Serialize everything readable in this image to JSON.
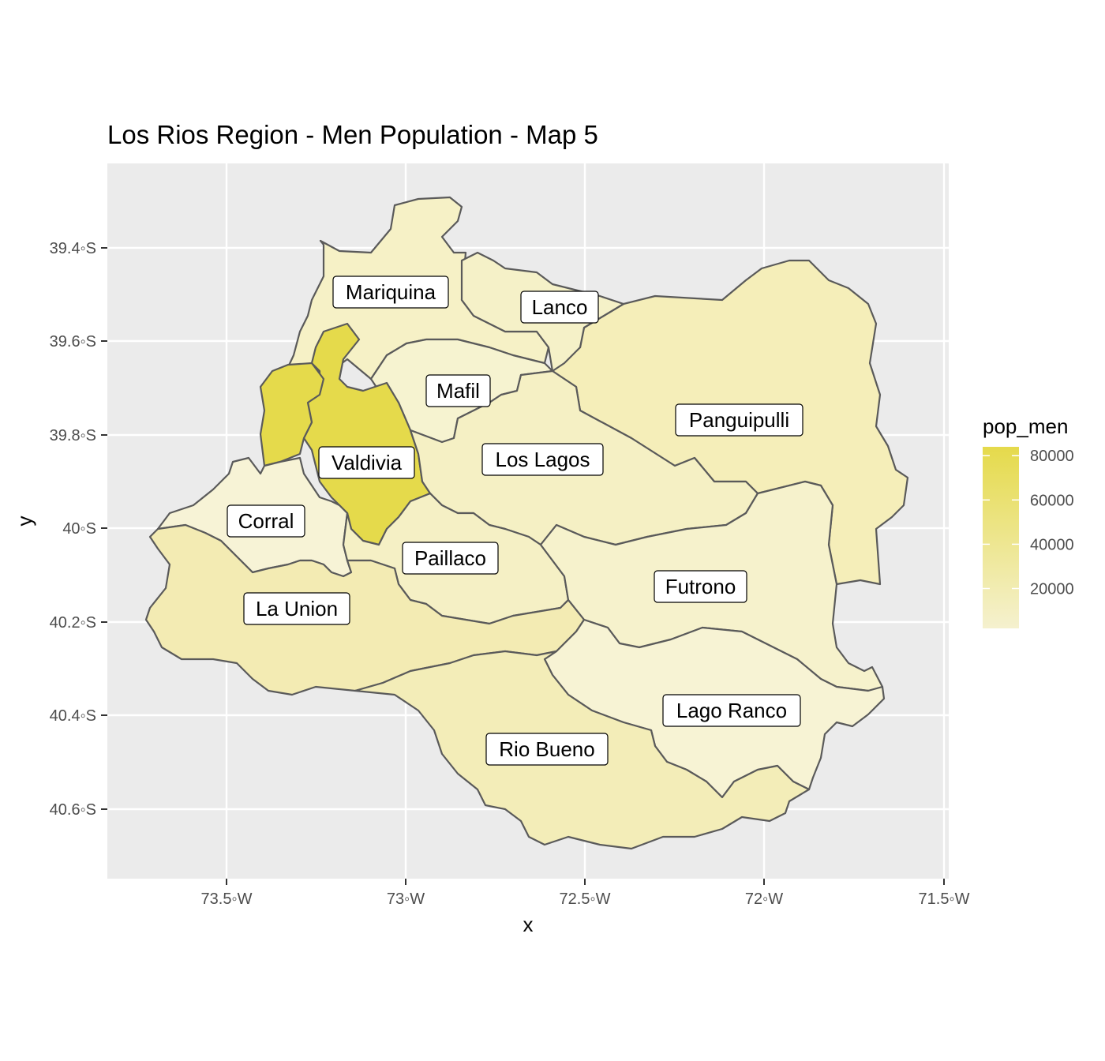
{
  "title": "Los Rios Region - Men Population - Map 5",
  "axes": {
    "xlabel": "x",
    "ylabel": "y",
    "x_ticks": [
      "73.5◦W",
      "73◦W",
      "72.5◦W",
      "72◦W",
      "71.5◦W"
    ],
    "y_ticks": [
      "39.4◦S",
      "39.6◦S",
      "39.8◦S",
      "40◦S",
      "40.2◦S",
      "40.4◦S",
      "40.6◦S"
    ]
  },
  "legend": {
    "title": "pop_men",
    "ticks": [
      "80000",
      "60000",
      "40000",
      "20000"
    ],
    "tick_values": [
      80000,
      60000,
      40000,
      20000
    ],
    "min": 2000,
    "max": 84000,
    "color_low": "#F5F1CF",
    "color_high": "#E5DA4B"
  },
  "colors": {
    "panel_bg": "#EBEBEB",
    "grid": "#FFFFFF",
    "border": "#5A5A5A"
  },
  "regions": [
    {
      "id": "mariquina",
      "label": "Mariquina"
    },
    {
      "id": "lanco",
      "label": "Lanco"
    },
    {
      "id": "mafil",
      "label": "Mafil"
    },
    {
      "id": "panguipulli",
      "label": "Panguipulli"
    },
    {
      "id": "los-lagos",
      "label": "Los Lagos"
    },
    {
      "id": "valdivia",
      "label": "Valdivia"
    },
    {
      "id": "corral",
      "label": "Corral"
    },
    {
      "id": "paillaco",
      "label": "Paillaco"
    },
    {
      "id": "futrono",
      "label": "Futrono"
    },
    {
      "id": "la-union",
      "label": "La Union"
    },
    {
      "id": "lago-ranco",
      "label": "Lago Ranco"
    },
    {
      "id": "rio-bueno",
      "label": "Rio Bueno"
    }
  ]
}
